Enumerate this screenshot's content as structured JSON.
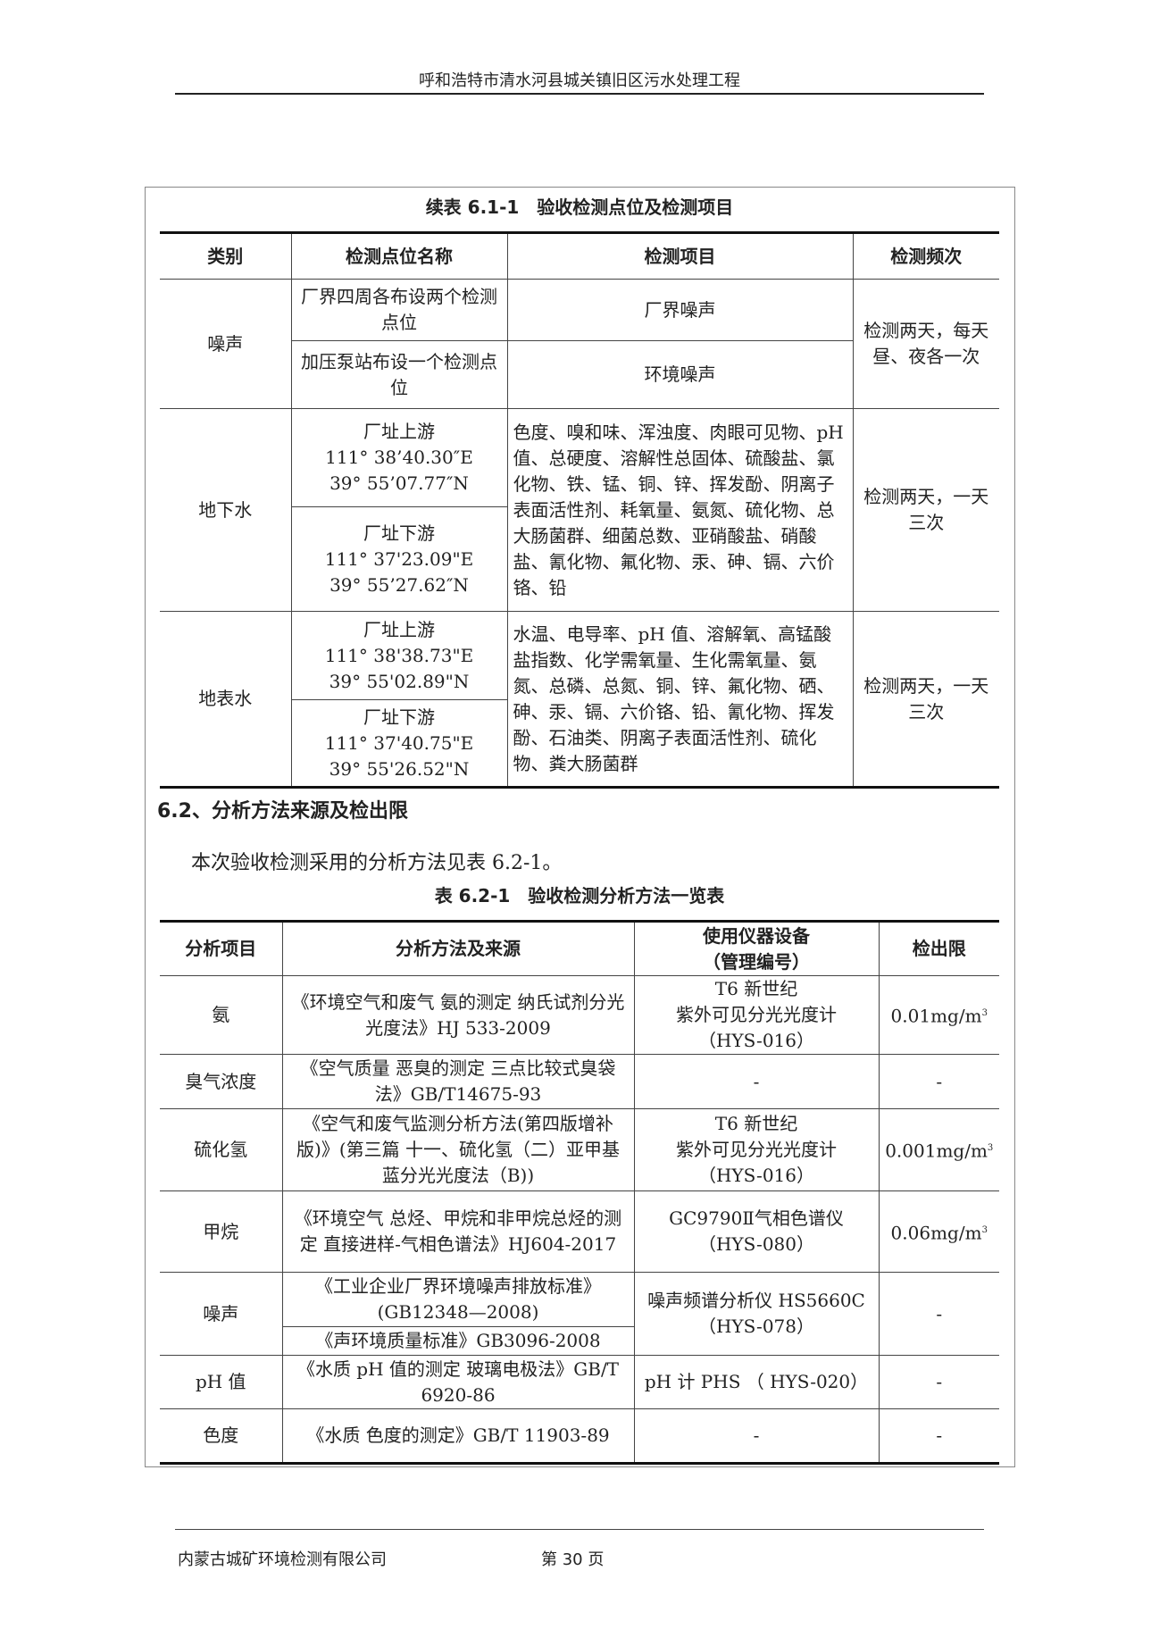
{
  "header": {
    "title": "呼和浩特市清水河县城关镇旧区污水处理工程"
  },
  "table1": {
    "caption": "续表 6.1-1　验收检测点位及检测项目",
    "columns": [
      "类别",
      "检测点位名称",
      "检测项目",
      "检测频次"
    ],
    "noise": {
      "category": "噪声",
      "points": [
        "厂界四周各布设两个检测点位",
        "加压泵站布设一个检测点位"
      ],
      "items": [
        "厂界噪声",
        "环境噪声"
      ],
      "frequency": "检测两天，每天昼、夜各一次"
    },
    "groundwater": {
      "category": "地下水",
      "points": [
        {
          "name": "厂址上游",
          "lon": "111° 38’40.30″E",
          "lat": "39° 55’07.77″N"
        },
        {
          "name": "厂址下游",
          "lon": "111° 37'23.09\"E",
          "lat": "39° 55’27.62″N"
        }
      ],
      "items": "色度、嗅和味、浑浊度、肉眼可见物、pH 值、总硬度、溶解性总固体、硫酸盐、氯化物、铁、锰、铜、锌、挥发酚、阴离子表面活性剂、耗氧量、氨氮、硫化物、总大肠菌群、细菌总数、亚硝酸盐、硝酸盐、氰化物、氟化物、汞、砷、镉、六价铬、铅",
      "frequency": "检测两天，一天三次"
    },
    "surfacewater": {
      "category": "地表水",
      "points": [
        {
          "name": "厂址上游",
          "lon": "111° 38'38.73\"E",
          "lat": "39° 55'02.89\"N"
        },
        {
          "name": "厂址下游",
          "lon": "111° 37'40.75\"E",
          "lat": "39° 55'26.52\"N"
        }
      ],
      "items": "水温、电导率、pH 值、溶解氧、高锰酸盐指数、化学需氧量、生化需氧量、氨氮、总磷、总氮、铜、锌、氟化物、硒、砷、汞、镉、六价铬、铅、氰化物、挥发酚、石油类、阴离子表面活性剂、硫化物、粪大肠菌群",
      "frequency": "检测两天，一天三次"
    }
  },
  "section": {
    "heading": "6.2、分析方法来源及检出限",
    "body": "本次验收检测采用的分析方法见表 6.2-1。"
  },
  "table2": {
    "caption": "表 6.2-1　验收检测分析方法一览表",
    "columns": [
      "分析项目",
      "分析方法及来源",
      "使用仪器设备",
      "（管理编号）",
      "检出限"
    ],
    "rows": [
      {
        "item": "氨",
        "method": "《环境空气和废气 氨的测定 纳氏试剂分光光度法》HJ 533-2009",
        "instrument": [
          "T6 新世纪",
          "紫外可见分光光度计",
          "（HYS-016）"
        ],
        "limit": "0.01mg/m",
        "unit_sup": "3"
      },
      {
        "item": "臭气浓度",
        "method": "《空气质量 恶臭的测定 三点比较式臭袋法》GB/T14675-93",
        "instrument": [
          "-"
        ],
        "limit": "-"
      },
      {
        "item": "硫化氢",
        "method": "《空气和废气监测分析方法(第四版增补版)》(第三篇 十一、硫化氢（二）亚甲基蓝分光光度法（B))",
        "instrument": [
          "T6 新世纪",
          "紫外可见分光光度计",
          "（HYS-016）"
        ],
        "limit": "0.001mg/m",
        "unit_sup": "3"
      },
      {
        "item": "甲烷",
        "method": "《环境空气 总烃、甲烷和非甲烷总烃的测定 直接进样-气相色谱法》HJ604-2017",
        "instrument": [
          "GC9790Ⅱ气相色谱仪",
          "（HYS-080）"
        ],
        "limit": "0.06mg/m",
        "unit_sup": "3"
      },
      {
        "item": "噪声",
        "methods": [
          "《工业企业厂界环境噪声排放标准》(GB12348—2008)",
          "《声环境质量标准》GB3096-2008"
        ],
        "instrument": [
          "噪声频谱分析仪 HS5660C",
          "（HYS-078）"
        ],
        "limit": "-"
      },
      {
        "item": "pH 值",
        "method": "《水质 pH 值的测定 玻璃电极法》GB/T 6920-86",
        "instrument": [
          "pH 计 PHS （ HYS-020）"
        ],
        "limit": "-"
      },
      {
        "item": "色度",
        "method": "《水质 色度的测定》GB/T 11903-89",
        "instrument": [
          "-"
        ],
        "limit": "-"
      }
    ]
  },
  "footer": {
    "company": "内蒙古城矿环境检测有限公司",
    "page": "第 30 页"
  }
}
